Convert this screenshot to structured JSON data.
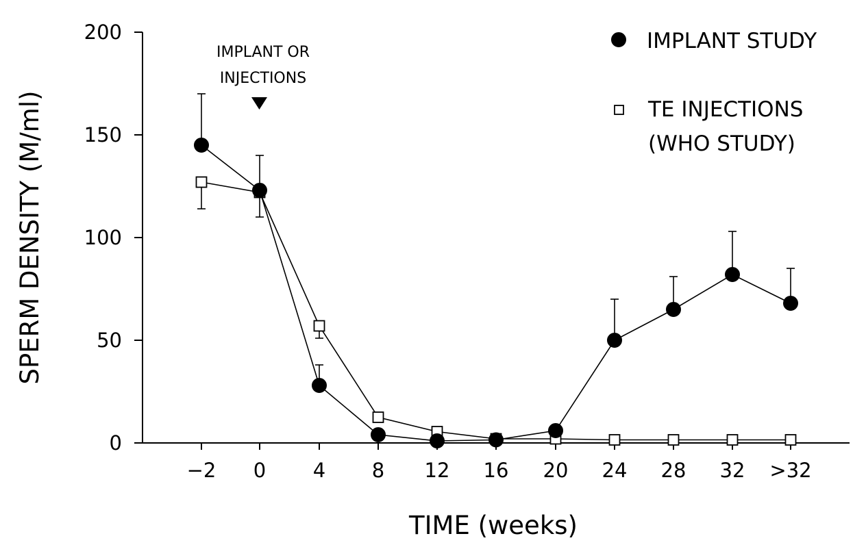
{
  "chart_data": {
    "type": "line",
    "title": "",
    "xlabel": "TIME (weeks)",
    "ylabel": "SPERM DENSITY (M/ml)",
    "categories": [
      "-2",
      "0",
      "4",
      "8",
      "12",
      "16",
      "20",
      "24",
      "28",
      "32",
      ">32"
    ],
    "category_labels": [
      "−2",
      "0",
      "4",
      "8",
      "12",
      "16",
      "20",
      "24",
      "28",
      "32",
      ">32"
    ],
    "ylim": [
      0,
      200
    ],
    "yticks": [
      "0",
      "50",
      "100",
      "150",
      "200"
    ],
    "legend_position": "top-right",
    "series": [
      {
        "name": "IMPLANT STUDY",
        "marker": "filled-circle",
        "values": [
          145,
          123,
          28,
          4,
          1,
          1.5,
          6,
          50,
          65,
          82,
          68
        ],
        "error_upper": [
          170,
          140,
          38,
          null,
          null,
          null,
          null,
          70,
          81,
          103,
          85
        ],
        "error_lower": [
          null,
          null,
          null,
          null,
          null,
          null,
          null,
          null,
          null,
          null,
          null
        ]
      },
      {
        "name_lines": [
          "TE INJECTIONS",
          "(WHO STUDY)"
        ],
        "marker": "open-square",
        "values": [
          127,
          122,
          57,
          12.5,
          5.5,
          2,
          2,
          1.5,
          1.5,
          1.5,
          1.5
        ],
        "error_upper": [
          null,
          null,
          null,
          null,
          null,
          null,
          null,
          null,
          null,
          null,
          null
        ],
        "error_lower": [
          114,
          110,
          51,
          null,
          null,
          null,
          null,
          null,
          null,
          null,
          null
        ]
      }
    ],
    "annotation": {
      "lines": [
        "IMPLANT OR",
        "INJECTIONS"
      ],
      "at_category": "0",
      "marker": "down-triangle"
    }
  }
}
